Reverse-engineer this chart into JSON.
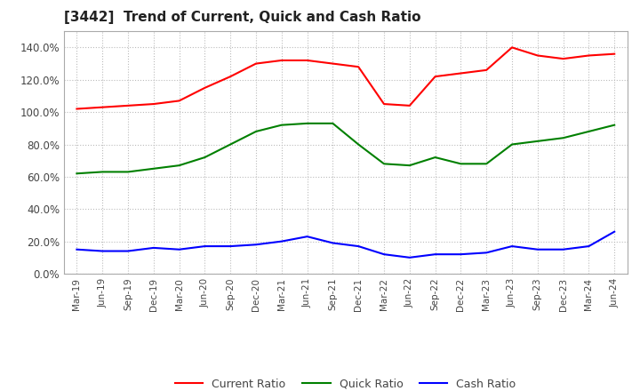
{
  "title": "[3442]  Trend of Current, Quick and Cash Ratio",
  "title_fontsize": 11,
  "background_color": "#ffffff",
  "plot_bg_color": "#ffffff",
  "grid_color": "#bbbbbb",
  "legend_labels": [
    "Current Ratio",
    "Quick Ratio",
    "Cash Ratio"
  ],
  "legend_colors": [
    "red",
    "green",
    "blue"
  ],
  "x_labels": [
    "Mar-19",
    "Jun-19",
    "Sep-19",
    "Dec-19",
    "Mar-20",
    "Jun-20",
    "Sep-20",
    "Dec-20",
    "Mar-21",
    "Jun-21",
    "Sep-21",
    "Dec-21",
    "Mar-22",
    "Jun-22",
    "Sep-22",
    "Dec-22",
    "Mar-23",
    "Jun-23",
    "Sep-23",
    "Dec-23",
    "Mar-24",
    "Jun-24"
  ],
  "current_ratio": [
    1.02,
    1.03,
    1.04,
    1.05,
    1.07,
    1.15,
    1.22,
    1.3,
    1.32,
    1.32,
    1.3,
    1.28,
    1.05,
    1.04,
    1.22,
    1.24,
    1.26,
    1.4,
    1.35,
    1.33,
    1.35,
    1.36
  ],
  "quick_ratio": [
    0.62,
    0.63,
    0.63,
    0.65,
    0.67,
    0.72,
    0.8,
    0.88,
    0.92,
    0.93,
    0.93,
    0.8,
    0.68,
    0.67,
    0.72,
    0.68,
    0.68,
    0.8,
    0.82,
    0.84,
    0.88,
    0.92
  ],
  "cash_ratio": [
    0.15,
    0.14,
    0.14,
    0.16,
    0.15,
    0.17,
    0.17,
    0.18,
    0.2,
    0.23,
    0.19,
    0.17,
    0.12,
    0.1,
    0.12,
    0.12,
    0.13,
    0.17,
    0.15,
    0.15,
    0.17,
    0.26
  ]
}
